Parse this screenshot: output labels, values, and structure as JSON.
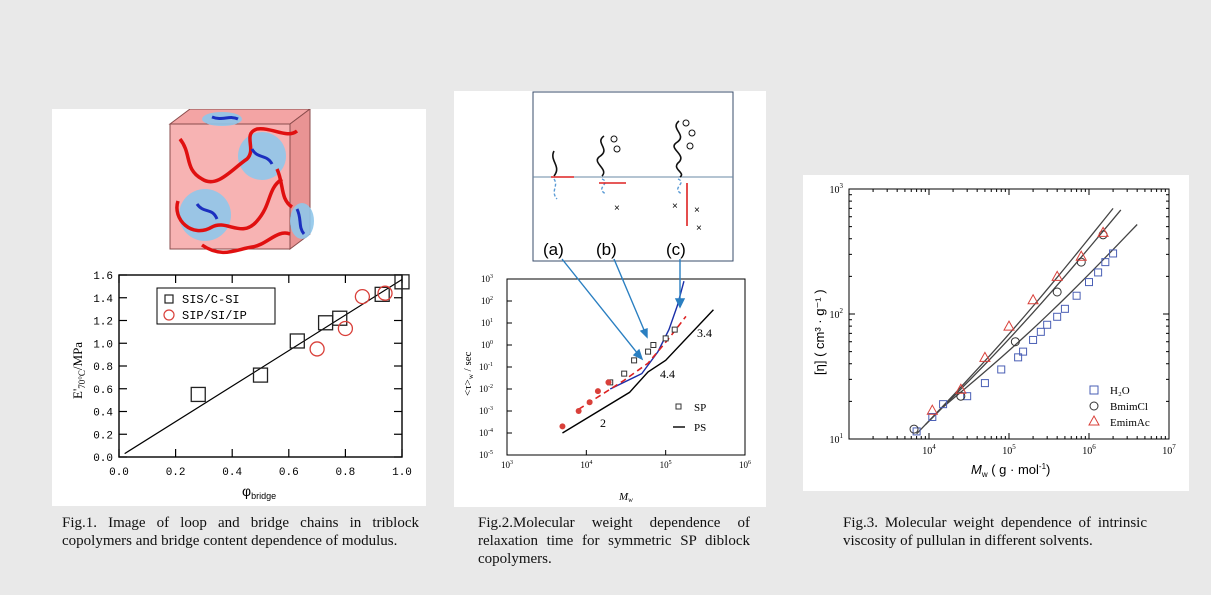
{
  "figures": [
    {
      "caption": "Fig.1. Image of loop and bridge chains in triblock copolymers and bridge content dependence of modulus."
    },
    {
      "caption": "Fig.2.Molecular weight dependence of relaxation time for symmetric SP diblock copolymers."
    },
    {
      "caption": "Fig.3. Molecular weight dependence of intrinsic viscosity of pullulan in different solvents."
    }
  ],
  "chart_data": [
    {
      "type": "scatter",
      "xlabel_main": "φ",
      "xlabel_sub": "bridge",
      "ylabel_main": "E'",
      "ylabel_sub": "70°C",
      "ylabel_unit": "/MPa",
      "xlim": [
        0,
        1.0
      ],
      "ylim": [
        0,
        1.6
      ],
      "xticks": [
        "0.0",
        "0.2",
        "0.4",
        "0.6",
        "0.8",
        "1.0"
      ],
      "yticks": [
        "0.0",
        "0.2",
        "0.4",
        "0.6",
        "0.8",
        "1.0",
        "1.2",
        "1.4",
        "1.6"
      ],
      "legend_position": "top-left",
      "series": [
        {
          "name": "SIS/C-SI",
          "marker": "square",
          "color": "#222222",
          "points": [
            [
              0.28,
              0.55
            ],
            [
              0.5,
              0.72
            ],
            [
              0.63,
              1.02
            ],
            [
              0.73,
              1.18
            ],
            [
              0.78,
              1.22
            ],
            [
              0.93,
              1.43
            ],
            [
              1.0,
              1.54
            ]
          ]
        },
        {
          "name": "SIP/SI/IP",
          "marker": "circle",
          "color": "#d9403a",
          "points": [
            [
              0.7,
              0.95
            ],
            [
              0.8,
              1.13
            ],
            [
              0.86,
              1.41
            ],
            [
              0.94,
              1.44
            ]
          ]
        }
      ],
      "fit_line": [
        [
          0.02,
          0.03
        ],
        [
          1.0,
          1.56
        ]
      ]
    },
    {
      "type": "line",
      "xlabel": "M",
      "xlabel_sub": "w",
      "ylabel": "<τ>",
      "ylabel_sub": "w",
      "ylabel_unit": " / sec",
      "log_x": true,
      "log_y": true,
      "xlim": [
        1000,
        1000000
      ],
      "ylim": [
        1e-05,
        1000
      ],
      "x_exp_labels": [
        "3",
        "4",
        "5",
        "6"
      ],
      "y_exp_labels": [
        "-5",
        "-4",
        "-3",
        "-2",
        "-1",
        "0",
        "1",
        "2",
        "3"
      ],
      "inset_labels": [
        "(a)",
        "(b)",
        "(c)"
      ],
      "slope_labels": [
        "2",
        "4.4",
        "3.4"
      ],
      "legend": [
        "SP",
        "PS"
      ],
      "series": [
        {
          "name": "SP",
          "marker": "square-open",
          "color": "#333333",
          "points": [
            [
              20000,
              0.02
            ],
            [
              30000,
              0.05
            ],
            [
              40000,
              0.2
            ],
            [
              60000,
              0.5
            ],
            [
              70000,
              1.0
            ],
            [
              100000,
              2.0
            ],
            [
              130000,
              5.0
            ]
          ]
        },
        {
          "name": "",
          "marker": "circle-filled",
          "color": "#d9403a",
          "points": [
            [
              5000,
              0.0002
            ],
            [
              8000,
              0.001
            ],
            [
              11000,
              0.0025
            ],
            [
              14000,
              0.008
            ],
            [
              19000,
              0.02
            ]
          ]
        },
        {
          "name": "PS",
          "line": "solid",
          "color": "#000000",
          "points": [
            [
              5000,
              0.0001
            ],
            [
              35000,
              0.007
            ],
            [
              60000,
              0.06
            ],
            [
              100000,
              0.2
            ],
            [
              400000,
              40
            ]
          ]
        }
      ],
      "model_curve_blue": [
        [
          20000,
          0.01
        ],
        [
          50000,
          0.05
        ],
        [
          80000,
          0.5
        ],
        [
          110000,
          5
        ],
        [
          140000,
          60
        ],
        [
          170000,
          800
        ]
      ],
      "model_curve_red": [
        [
          8000,
          0.0012
        ],
        [
          30000,
          0.025
        ],
        [
          60000,
          0.15
        ],
        [
          110000,
          2
        ],
        [
          180000,
          20
        ]
      ]
    },
    {
      "type": "scatter",
      "xlabel": "M",
      "xlabel_sub": "w",
      "xlabel_unit": " ( g · mol",
      "ylabel_unit_text": "[η] ( cm³ · g⁻¹ )",
      "log_x": true,
      "log_y": true,
      "xlim": [
        1000,
        10000000
      ],
      "ylim": [
        10,
        1000
      ],
      "x_exp_labels": [
        "4",
        "5",
        "6",
        "7"
      ],
      "y_exp_labels": [
        "1",
        "2",
        "3"
      ],
      "legend_position": "bottom-right",
      "series": [
        {
          "name": "H₂O",
          "marker": "square",
          "color": "#4a5fb5",
          "points": [
            [
              7000,
              11.5
            ],
            [
              11000,
              15
            ],
            [
              15000,
              19
            ],
            [
              30000,
              22
            ],
            [
              50000,
              28
            ],
            [
              80000,
              36
            ],
            [
              130000,
              45
            ],
            [
              150000,
              50
            ],
            [
              200000,
              62
            ],
            [
              250000,
              72
            ],
            [
              300000,
              82
            ],
            [
              400000,
              95
            ],
            [
              500000,
              110
            ],
            [
              700000,
              140
            ],
            [
              1000000,
              180
            ],
            [
              1300000,
              215
            ],
            [
              1600000,
              260
            ],
            [
              2000000,
              305
            ]
          ]
        },
        {
          "name": "BmimCl",
          "marker": "circle",
          "color": "#333333",
          "points": [
            [
              6500,
              12
            ],
            [
              25000,
              22
            ],
            [
              120000,
              60
            ],
            [
              400000,
              150
            ],
            [
              800000,
              260
            ],
            [
              1500000,
              430
            ]
          ]
        },
        {
          "name": "EmimAc",
          "marker": "triangle",
          "color": "#d9403a",
          "points": [
            [
              11000,
              17
            ],
            [
              25000,
              25
            ],
            [
              50000,
              45
            ],
            [
              100000,
              80
            ],
            [
              200000,
              130
            ],
            [
              400000,
              200
            ],
            [
              800000,
              290
            ],
            [
              1500000,
              450
            ]
          ]
        }
      ],
      "fit_lines": [
        [
          [
            7000,
            11
          ],
          [
            2000000,
            700
          ]
        ],
        [
          [
            9000,
            13
          ],
          [
            2500000,
            680
          ]
        ],
        [
          [
            15000,
            18
          ],
          [
            4000000,
            520
          ]
        ]
      ]
    }
  ]
}
